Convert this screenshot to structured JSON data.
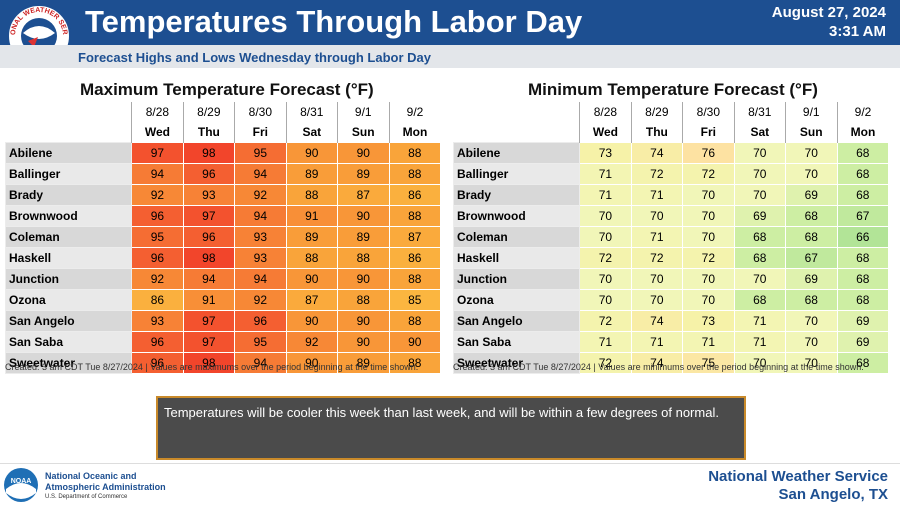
{
  "header": {
    "title": "Temperatures Through Labor Day",
    "date": "August 27, 2024",
    "time": "3:31 AM",
    "subtitle": "Forecast Highs and Lows Wednesday through Labor Day",
    "logo_text": "NATIONAL WEATHER SERVICE"
  },
  "tables": [
    {
      "kind": "max",
      "title": "Maximum Temperature Forecast (°F)",
      "days": [
        {
          "date": "8/28",
          "day": "Wed"
        },
        {
          "date": "8/29",
          "day": "Thu"
        },
        {
          "date": "8/30",
          "day": "Fri"
        },
        {
          "date": "8/31",
          "day": "Sat"
        },
        {
          "date": "9/1",
          "day": "Sun"
        },
        {
          "date": "9/2",
          "day": "Mon"
        }
      ],
      "rows": [
        {
          "city": "Abilene",
          "values": [
            97,
            98,
            95,
            90,
            90,
            88
          ]
        },
        {
          "city": "Ballinger",
          "values": [
            94,
            96,
            94,
            89,
            89,
            88
          ]
        },
        {
          "city": "Brady",
          "values": [
            92,
            93,
            92,
            88,
            87,
            86
          ]
        },
        {
          "city": "Brownwood",
          "values": [
            96,
            97,
            94,
            91,
            90,
            88
          ]
        },
        {
          "city": "Coleman",
          "values": [
            95,
            96,
            93,
            89,
            89,
            87
          ]
        },
        {
          "city": "Haskell",
          "values": [
            96,
            98,
            93,
            88,
            88,
            86
          ]
        },
        {
          "city": "Junction",
          "values": [
            92,
            94,
            94,
            90,
            90,
            88
          ]
        },
        {
          "city": "Ozona",
          "values": [
            86,
            91,
            92,
            87,
            88,
            85
          ]
        },
        {
          "city": "San Angelo",
          "values": [
            93,
            97,
            96,
            90,
            90,
            88
          ]
        },
        {
          "city": "San Saba",
          "values": [
            96,
            97,
            95,
            92,
            90,
            90
          ]
        },
        {
          "city": "Sweetwater",
          "values": [
            96,
            98,
            94,
            90,
            89,
            88
          ]
        }
      ],
      "note": "Created: 3 am CDT Tue 8/27/2024  |  Values are maximums over the period beginning at the time shown."
    },
    {
      "kind": "min",
      "title": "Minimum Temperature Forecast (°F)",
      "days": [
        {
          "date": "8/28",
          "day": "Wed"
        },
        {
          "date": "8/29",
          "day": "Thu"
        },
        {
          "date": "8/30",
          "day": "Fri"
        },
        {
          "date": "8/31",
          "day": "Sat"
        },
        {
          "date": "9/1",
          "day": "Sun"
        },
        {
          "date": "9/2",
          "day": "Mon"
        }
      ],
      "rows": [
        {
          "city": "Abilene",
          "values": [
            73,
            74,
            76,
            70,
            70,
            68
          ]
        },
        {
          "city": "Ballinger",
          "values": [
            71,
            72,
            72,
            70,
            70,
            68
          ]
        },
        {
          "city": "Brady",
          "values": [
            71,
            71,
            70,
            70,
            69,
            68
          ]
        },
        {
          "city": "Brownwood",
          "values": [
            70,
            70,
            70,
            69,
            68,
            67
          ]
        },
        {
          "city": "Coleman",
          "values": [
            70,
            71,
            70,
            68,
            68,
            66
          ]
        },
        {
          "city": "Haskell",
          "values": [
            72,
            72,
            72,
            68,
            67,
            68
          ]
        },
        {
          "city": "Junction",
          "values": [
            70,
            70,
            70,
            70,
            69,
            68
          ]
        },
        {
          "city": "Ozona",
          "values": [
            70,
            70,
            70,
            68,
            68,
            68
          ]
        },
        {
          "city": "San Angelo",
          "values": [
            72,
            74,
            73,
            71,
            70,
            69
          ]
        },
        {
          "city": "San Saba",
          "values": [
            71,
            71,
            71,
            71,
            70,
            69
          ]
        },
        {
          "city": "Sweetwater",
          "values": [
            72,
            74,
            75,
            70,
            70,
            68
          ]
        }
      ],
      "note": "Created: 3 am CDT Tue 8/27/2024  |  Values are minimums over the period beginning at the time shown."
    }
  ],
  "message": "Temperatures will be cooler this week than last week, and will be within a few degrees of normal.",
  "footer": {
    "noaa_logo": "NOAA",
    "agency_line1": "National Oceanic and",
    "agency_line2": "Atmospheric Administration",
    "department": "U.S. Department of Commerce",
    "office": "National Weather Service",
    "location": "San Angelo, TX"
  }
}
